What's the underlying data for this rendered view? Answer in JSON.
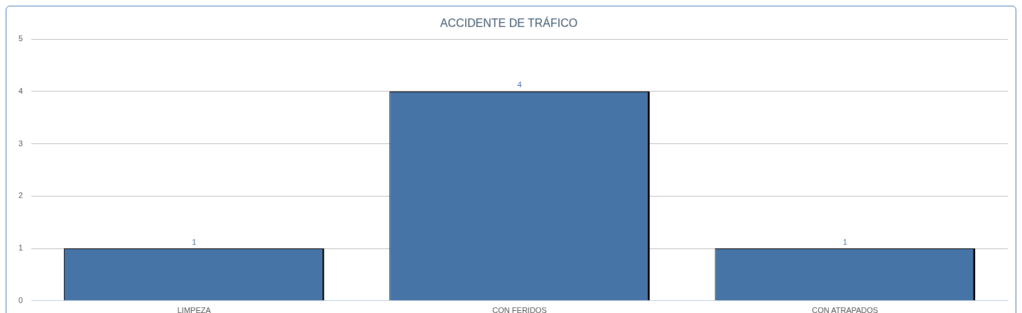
{
  "chart_data": {
    "type": "bar",
    "title": "ACCIDENTE DE TRÁFICO",
    "categories": [
      "LIMPEZA",
      "CON FERIDOS",
      "CON ATRAPADOS"
    ],
    "values": [
      1,
      4,
      1
    ],
    "color": "#4674a7",
    "ylim": [
      0,
      5
    ],
    "yticks": [
      0,
      1,
      2,
      3,
      4,
      5
    ],
    "grid": "y",
    "legend": false,
    "data_labels": true
  }
}
